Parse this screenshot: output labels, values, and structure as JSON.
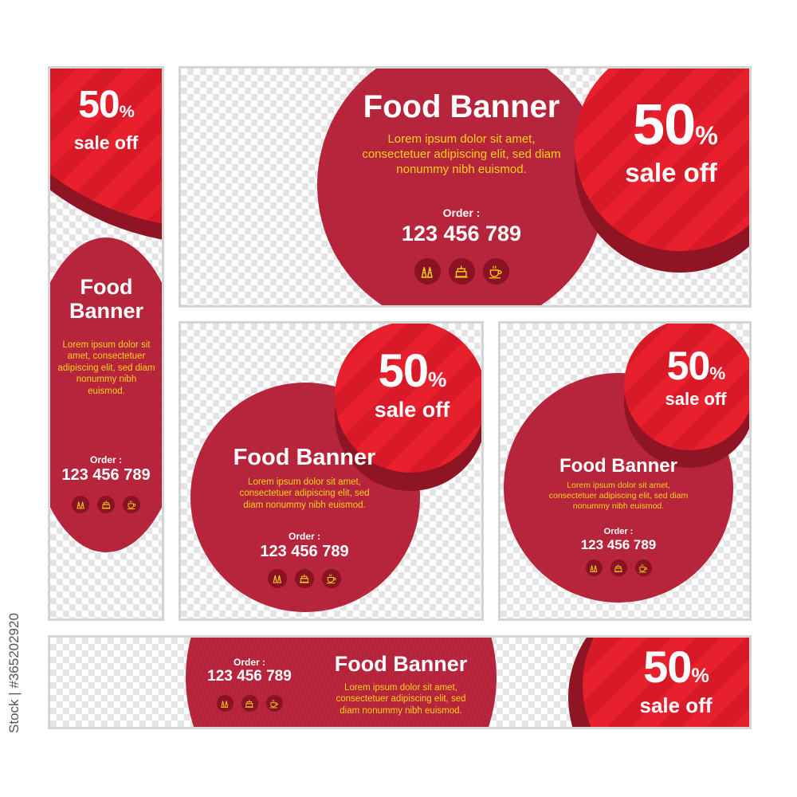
{
  "common": {
    "percent": "50",
    "percent_sign": "%",
    "sale": "sale off",
    "title": "Food Banner",
    "body": "Lorem ipsum dolor sit amet, consectetuer adipiscing elit, sed diam nonummy nibh euismod.",
    "order_label": "Order :",
    "phone": "123 456 789",
    "icons": [
      "pastry-icon",
      "cake-icon",
      "coffee-cup-icon"
    ]
  },
  "colors": {
    "dark_red": "#b2162e",
    "bright_red": "#e8202d",
    "shadow_red": "#8f1424",
    "yellow": "#f8d21c"
  },
  "watermark": {
    "stock_id": "Stock | #365202920"
  }
}
